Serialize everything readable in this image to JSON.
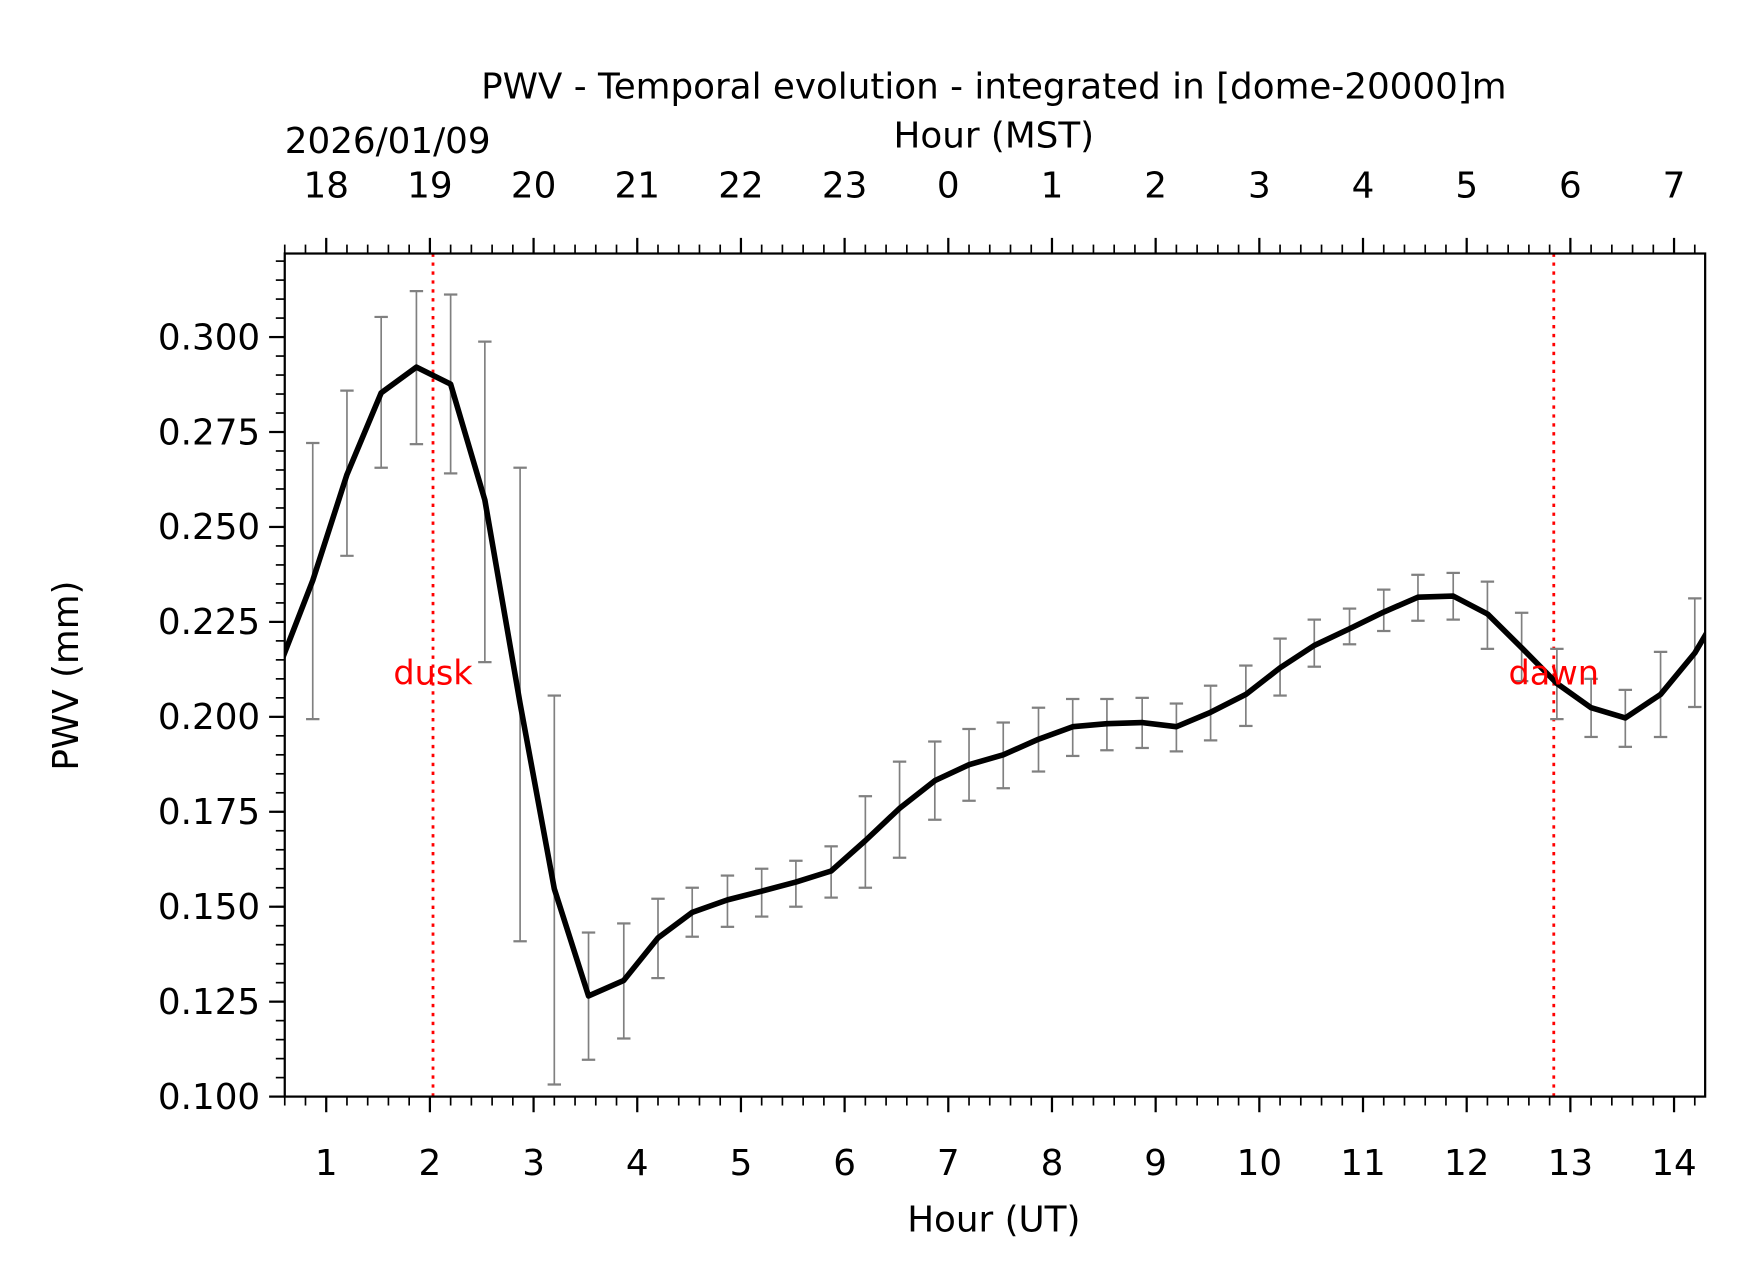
{
  "chart_data": {
    "type": "line",
    "title": "PWV - Temporal evolution - integrated in [dome-20000]m",
    "date_label": "2026/01/09",
    "xlabel": "Hour (UT)",
    "xlabel_top": "Hour (MST)",
    "ylabel": "PWV (mm)",
    "xlim": [
      0.6,
      14.3
    ],
    "ylim": [
      0.1,
      0.322
    ],
    "x_ticks": [
      1,
      2,
      3,
      4,
      5,
      6,
      7,
      8,
      9,
      10,
      11,
      12,
      13,
      14
    ],
    "x_tick_labels": [
      "1",
      "2",
      "3",
      "4",
      "5",
      "6",
      "7",
      "8",
      "9",
      "10",
      "11",
      "12",
      "13",
      "14"
    ],
    "x_top_tick_labels": [
      "18",
      "19",
      "20",
      "21",
      "22",
      "23",
      "0",
      "1",
      "2",
      "3",
      "4",
      "5",
      "6",
      "7"
    ],
    "y_ticks": [
      0.1,
      0.125,
      0.15,
      0.175,
      0.2,
      0.225,
      0.25,
      0.275,
      0.3
    ],
    "y_tick_labels": [
      "0.100",
      "0.125",
      "0.150",
      "0.175",
      "0.200",
      "0.225",
      "0.250",
      "0.275",
      "0.300"
    ],
    "grid": false,
    "colors": {
      "line": "#000000",
      "errorbar": "#808080",
      "markers": "#ff0000"
    },
    "series": [
      {
        "x": [
          0.53,
          0.87,
          1.2,
          1.53,
          1.87,
          2.2,
          2.53,
          2.87,
          3.2,
          3.53,
          3.87,
          4.2,
          4.53,
          4.87,
          5.2,
          5.53,
          5.87,
          6.2,
          6.53,
          6.87,
          7.2,
          7.53,
          7.87,
          8.2,
          8.53,
          8.87,
          9.2,
          9.53,
          9.87,
          10.2,
          10.53,
          10.87,
          11.2,
          11.53,
          11.87,
          12.2,
          12.53,
          12.87,
          13.2,
          13.53,
          13.87,
          14.2,
          14.53
        ],
        "y": [
          0.212,
          0.2359,
          0.2638,
          0.2853,
          0.2921,
          0.2876,
          0.2571,
          0.2035,
          0.1547,
          0.1265,
          0.1306,
          0.1418,
          0.1485,
          0.1518,
          0.1541,
          0.1565,
          0.1594,
          0.1674,
          0.1759,
          0.1832,
          0.1874,
          0.19,
          0.1941,
          0.1974,
          0.1982,
          0.1985,
          0.1974,
          0.2012,
          0.2059,
          0.2129,
          0.2188,
          0.2232,
          0.2276,
          0.2315,
          0.2318,
          0.2271,
          0.2182,
          0.2088,
          0.2024,
          0.1997,
          0.2059,
          0.2168,
          0.232
        ],
        "y_upper": [
          null,
          0.2721,
          0.2859,
          0.3053,
          0.3121,
          0.3112,
          0.2988,
          0.2656,
          0.2056,
          0.1432,
          0.1456,
          0.1521,
          0.155,
          0.1582,
          0.16,
          0.1621,
          0.1659,
          0.1791,
          0.1882,
          0.1935,
          0.1968,
          0.1985,
          0.2024,
          0.2047,
          0.2047,
          0.205,
          0.2035,
          0.2082,
          0.2135,
          0.2206,
          0.2256,
          0.2285,
          0.2335,
          0.2374,
          0.2379,
          0.2356,
          0.2274,
          0.2179,
          0.21,
          0.2071,
          0.2171,
          0.2312,
          null
        ],
        "y_lower": [
          null,
          0.1994,
          0.2424,
          0.2656,
          0.2718,
          0.2641,
          0.2144,
          0.1409,
          0.1032,
          0.1097,
          0.1153,
          0.1312,
          0.1421,
          0.1447,
          0.1474,
          0.15,
          0.1524,
          0.155,
          0.1629,
          0.1729,
          0.1779,
          0.1812,
          0.1856,
          0.1897,
          0.1912,
          0.1918,
          0.1909,
          0.1938,
          0.1976,
          0.2056,
          0.2132,
          0.2191,
          0.2226,
          0.2253,
          0.2256,
          0.2179,
          0.2094,
          0.1994,
          0.1947,
          0.1921,
          0.1947,
          0.2026,
          null
        ]
      }
    ],
    "annotations": [
      {
        "text": "dusk",
        "x": 2.03,
        "y": 0.2115
      },
      {
        "text": "dawn",
        "x": 12.84,
        "y": 0.2115
      }
    ],
    "vlines": [
      {
        "x": 2.03,
        "style": "dotted",
        "color": "#ff0000"
      },
      {
        "x": 12.84,
        "style": "dotted",
        "color": "#ff0000"
      }
    ]
  }
}
